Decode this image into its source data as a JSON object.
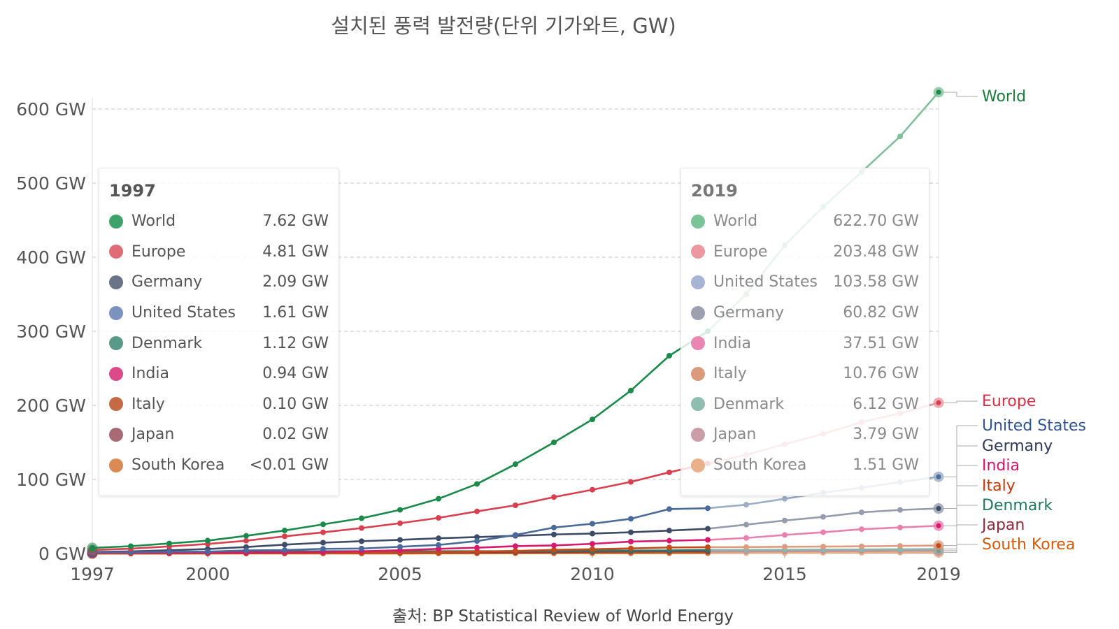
{
  "title": "설치된 풍력 발전량(단위 기가와트, GW)",
  "source": "출처: BP Statistical Review of World Energy",
  "chart_data": {
    "type": "line",
    "title": "설치된 풍력 발전량(단위 기가와트, GW)",
    "unit": "GW",
    "x": [
      1997,
      1998,
      1999,
      2000,
      2001,
      2002,
      2003,
      2004,
      2005,
      2006,
      2007,
      2008,
      2009,
      2010,
      2011,
      2012,
      2013,
      2014,
      2015,
      2016,
      2017,
      2018,
      2019
    ],
    "xlim": [
      1997,
      2019
    ],
    "ylim": [
      0,
      620
    ],
    "x_ticks": [
      "1997",
      "2000",
      "2005",
      "2010",
      "2015",
      "2019"
    ],
    "x_tick_values": [
      1997,
      2000,
      2005,
      2010,
      2015,
      2019
    ],
    "y_ticks": [
      "0 GW",
      "100 GW",
      "200 GW",
      "300 GW",
      "400 GW",
      "500 GW",
      "600 GW"
    ],
    "y_tick_values": [
      0,
      100,
      200,
      300,
      400,
      500,
      600
    ],
    "highlight_from": 2013,
    "series": [
      {
        "name": "World",
        "color": "#1a8a4a",
        "label_color": "#1a7a3c",
        "values": [
          7.62,
          9.9,
          13.6,
          17.4,
          23.9,
          31.1,
          39.4,
          47.6,
          59.0,
          73.9,
          93.9,
          120.6,
          150.0,
          181.0,
          220.0,
          267.0,
          300.0,
          350.0,
          416.0,
          468.0,
          515.0,
          563.0,
          622.7
        ]
      },
      {
        "name": "Europe",
        "color": "#d8404f",
        "label_color": "#d63045",
        "values": [
          4.81,
          6.5,
          9.6,
          12.9,
          17.3,
          23.2,
          28.6,
          34.4,
          40.9,
          48.1,
          56.9,
          65.1,
          76.2,
          86.1,
          96.7,
          109.6,
          121.5,
          133.2,
          147.5,
          161.5,
          177.4,
          189.2,
          203.48
        ]
      },
      {
        "name": "United States",
        "color": "#4a6a9a",
        "label_color": "#2e5496",
        "values": [
          1.61,
          1.84,
          2.45,
          2.58,
          4.23,
          4.69,
          6.37,
          6.72,
          9.12,
          11.6,
          16.8,
          25.1,
          35.1,
          40.2,
          46.9,
          60.0,
          61.1,
          65.9,
          73.9,
          82.1,
          88.9,
          96.4,
          103.58
        ]
      },
      {
        "name": "Germany",
        "color": "#3d4b66",
        "label_color": "#2f3a55",
        "values": [
          2.09,
          2.88,
          4.44,
          6.1,
          8.75,
          11.99,
          14.61,
          16.63,
          18.43,
          20.62,
          22.25,
          23.9,
          25.72,
          26.9,
          28.71,
          30.98,
          33.46,
          38.99,
          44.58,
          49.44,
          55.58,
          58.84,
          60.82
        ]
      },
      {
        "name": "India",
        "color": "#d61a6c",
        "label_color": "#d4126a",
        "values": [
          0.94,
          0.99,
          1.08,
          1.22,
          1.46,
          1.7,
          2.12,
          3.0,
          4.43,
          6.27,
          7.85,
          10.0,
          10.9,
          13.1,
          16.1,
          17.3,
          18.4,
          21.0,
          25.1,
          28.7,
          32.8,
          35.2,
          37.51
        ]
      },
      {
        "name": "Italy",
        "color": "#c44a17",
        "label_color": "#c23a06",
        "values": [
          0.1,
          0.18,
          0.21,
          0.36,
          0.66,
          0.78,
          0.87,
          1.13,
          1.64,
          1.9,
          2.7,
          3.54,
          4.85,
          5.8,
          6.94,
          8.13,
          8.54,
          8.68,
          9.14,
          9.38,
          9.76,
          10.3,
          10.76
        ]
      },
      {
        "name": "Denmark",
        "color": "#2a7a6a",
        "label_color": "#1f7a5a",
        "values": [
          1.12,
          1.45,
          1.74,
          2.39,
          2.49,
          2.89,
          3.12,
          3.12,
          3.13,
          3.14,
          3.12,
          3.16,
          3.48,
          3.8,
          3.95,
          4.16,
          4.81,
          4.88,
          5.08,
          5.23,
          5.48,
          5.76,
          6.12
        ]
      },
      {
        "name": "Japan",
        "color": "#8c3a4a",
        "label_color": "#8c2a3a",
        "values": [
          0.02,
          0.03,
          0.07,
          0.14,
          0.3,
          0.46,
          0.68,
          0.89,
          1.06,
          1.31,
          1.54,
          1.88,
          2.06,
          2.3,
          2.54,
          2.61,
          2.67,
          2.79,
          3.04,
          3.23,
          3.4,
          3.65,
          3.79
        ]
      },
      {
        "name": "South Korea",
        "color": "#d46a1e",
        "label_color": "#d45a0a",
        "values": [
          0.0,
          0.0,
          0.0,
          0.01,
          0.01,
          0.01,
          0.02,
          0.03,
          0.1,
          0.17,
          0.19,
          0.28,
          0.35,
          0.38,
          0.41,
          0.48,
          0.56,
          0.61,
          0.84,
          1.03,
          1.14,
          1.3,
          1.51
        ]
      }
    ]
  },
  "tooltip_left": {
    "year": "1997",
    "rows": [
      {
        "name": "World",
        "value": "7.62 GW",
        "color": "#3ea36a"
      },
      {
        "name": "Europe",
        "value": "4.81 GW",
        "color": "#e06a76"
      },
      {
        "name": "Germany",
        "value": "2.09 GW",
        "color": "#6a7388"
      },
      {
        "name": "United States",
        "value": "1.61 GW",
        "color": "#7b92be"
      },
      {
        "name": "Denmark",
        "value": "1.12 GW",
        "color": "#5a9a8a"
      },
      {
        "name": "India",
        "value": "0.94 GW",
        "color": "#dc4a8a"
      },
      {
        "name": "Italy",
        "value": "0.10 GW",
        "color": "#c46a44"
      },
      {
        "name": "Japan",
        "value": "0.02 GW",
        "color": "#a86a76"
      },
      {
        "name": "South Korea",
        "value": "<0.01 GW",
        "color": "#d98a55"
      }
    ]
  },
  "tooltip_right": {
    "year": "2019",
    "rows": [
      {
        "name": "World",
        "value": "622.70 GW",
        "color": "#7bc49a"
      },
      {
        "name": "Europe",
        "value": "203.48 GW",
        "color": "#eb98a0"
      },
      {
        "name": "United States",
        "value": "103.58 GW",
        "color": "#a6b5d4"
      },
      {
        "name": "Germany",
        "value": "60.82 GW",
        "color": "#9ba1ae"
      },
      {
        "name": "India",
        "value": "37.51 GW",
        "color": "#ea86b2"
      },
      {
        "name": "Italy",
        "value": "10.76 GW",
        "color": "#dc9a7c"
      },
      {
        "name": "Denmark",
        "value": "6.12 GW",
        "color": "#8fbdb2"
      },
      {
        "name": "Japan",
        "value": "3.79 GW",
        "color": "#c99ea6"
      },
      {
        "name": "South Korea",
        "value": "1.51 GW",
        "color": "#e9b08a"
      }
    ]
  }
}
